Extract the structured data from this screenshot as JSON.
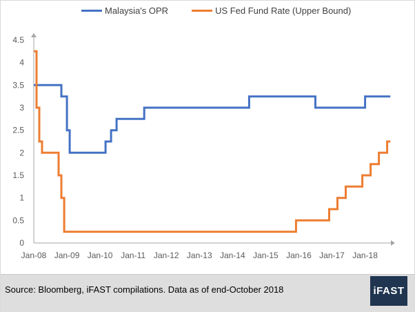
{
  "legend": {
    "items": [
      {
        "label": "Malaysia's OPR",
        "color": "#4472c4"
      },
      {
        "label": "US Fed Fund Rate (Upper Bound)",
        "color": "#ed7d31"
      }
    ]
  },
  "footer": {
    "source_text": "Source: Bloomberg, iFAST compilations. Data as of end-October 2018",
    "logo_text": "iFAST"
  },
  "chart_data": {
    "type": "line",
    "title": "",
    "xlabel": "",
    "ylabel": "",
    "ylim": [
      0,
      4.5
    ],
    "y_ticks": [
      "0",
      "0.5",
      "1",
      "1.5",
      "2",
      "2.5",
      "3",
      "3.5",
      "4",
      "4.5"
    ],
    "x_ticks": [
      "Jan-08",
      "Jan-09",
      "Jan-10",
      "Jan-11",
      "Jan-12",
      "Jan-13",
      "Jan-14",
      "Jan-15",
      "Jan-16",
      "Jan-17",
      "Jan-18"
    ],
    "xlim": [
      "2008-01",
      "2018-10"
    ],
    "grid": false,
    "legend_position": "top",
    "step": true,
    "series": [
      {
        "name": "Malaysia's OPR",
        "color": "#4472c4",
        "points": [
          [
            "2008-01",
            3.5
          ],
          [
            "2008-11",
            3.25
          ],
          [
            "2009-01",
            2.5
          ],
          [
            "2009-02",
            2.0
          ],
          [
            "2010-03",
            2.25
          ],
          [
            "2010-05",
            2.5
          ],
          [
            "2010-07",
            2.75
          ],
          [
            "2011-05",
            3.0
          ],
          [
            "2014-07",
            3.25
          ],
          [
            "2016-07",
            3.0
          ],
          [
            "2018-01",
            3.25
          ],
          [
            "2018-10",
            3.25
          ]
        ]
      },
      {
        "name": "US Fed Fund Rate (Upper Bound)",
        "color": "#ed7d31",
        "points": [
          [
            "2008-01",
            4.25
          ],
          [
            "2008-02",
            3.0
          ],
          [
            "2008-03",
            2.25
          ],
          [
            "2008-04",
            2.0
          ],
          [
            "2008-10",
            1.5
          ],
          [
            "2008-11",
            1.0
          ],
          [
            "2008-12",
            0.25
          ],
          [
            "2015-12",
            0.5
          ],
          [
            "2016-12",
            0.75
          ],
          [
            "2017-03",
            1.0
          ],
          [
            "2017-06",
            1.25
          ],
          [
            "2017-12",
            1.5
          ],
          [
            "2018-03",
            1.75
          ],
          [
            "2018-06",
            2.0
          ],
          [
            "2018-09",
            2.25
          ],
          [
            "2018-10",
            2.25
          ]
        ]
      }
    ]
  }
}
